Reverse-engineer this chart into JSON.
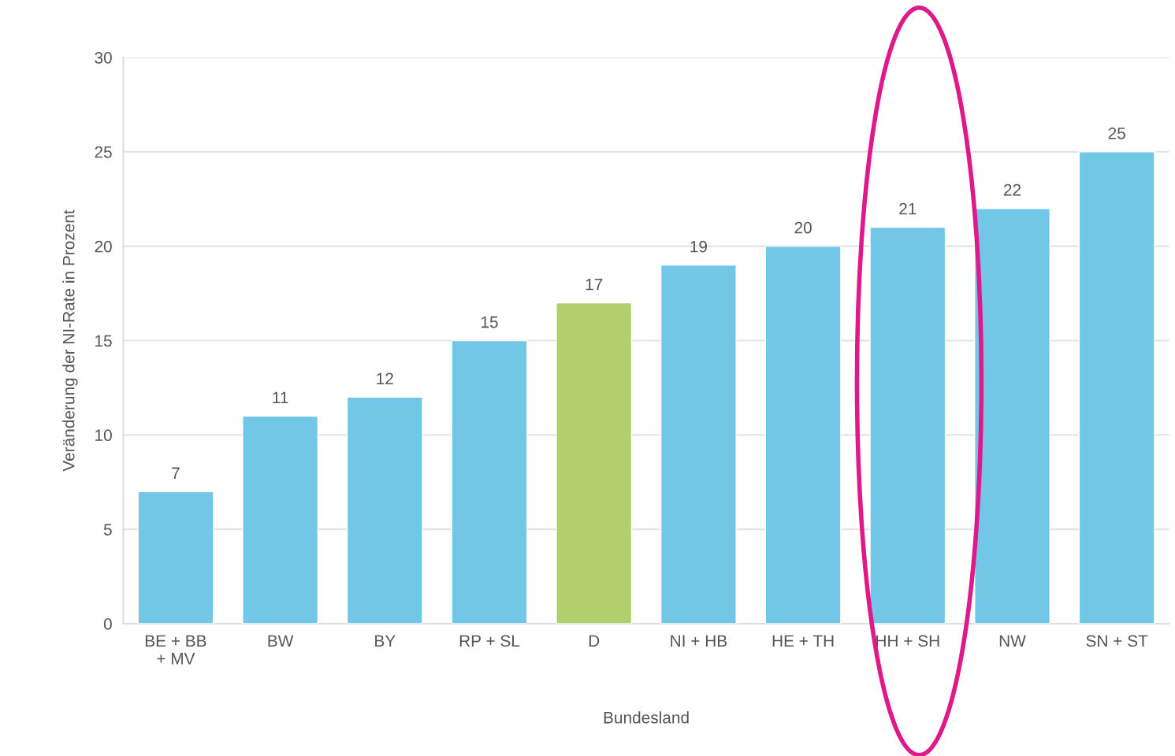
{
  "chart_data": {
    "type": "bar",
    "xlabel": "Bundesland",
    "ylabel": "Veränderung der NI-Rate in Prozent",
    "categories": [
      "BE + BB\n+ MV",
      "BW",
      "BY",
      "RP + SL",
      "D",
      "NI + HB",
      "HE + TH",
      "HH + SH",
      "NW",
      "SN + ST"
    ],
    "values": [
      7,
      11,
      12,
      15,
      17,
      19,
      20,
      21,
      22,
      25
    ],
    "colors": [
      "#72c7e7",
      "#72c7e7",
      "#72c7e7",
      "#72c7e7",
      "#b2cf6d",
      "#72c7e7",
      "#72c7e7",
      "#72c7e7",
      "#72c7e7",
      "#72c7e7"
    ],
    "ylim": [
      0,
      30
    ],
    "yticks": [
      0,
      5,
      10,
      15,
      20,
      25,
      30
    ],
    "grid": "y",
    "data_labels": true
  }
}
